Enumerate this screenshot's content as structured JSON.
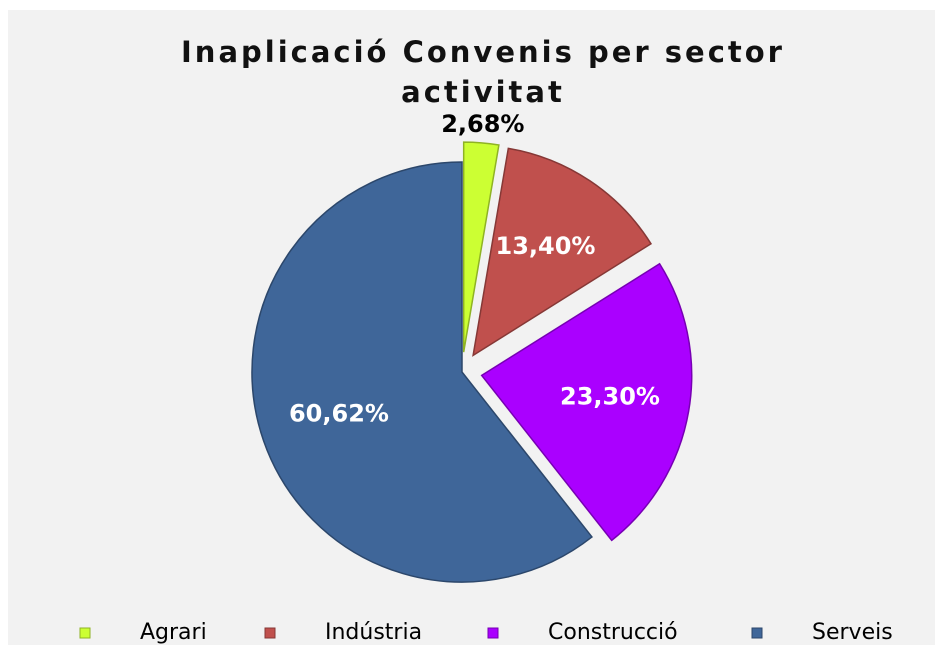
{
  "chart_data": {
    "type": "pie",
    "title": "Inaplicació Convenis per sector activitat",
    "categories": [
      "Agrari",
      "Indústria",
      "Construcció",
      "Serveis"
    ],
    "values": [
      2.68,
      13.4,
      23.3,
      60.62
    ],
    "value_labels": [
      "2,68%",
      "13,40%",
      "23,30%",
      "60,62%"
    ],
    "colors": [
      "#ccff33",
      "#c0504d",
      "#aa00ff",
      "#3f6699"
    ],
    "legend": "bottom"
  }
}
